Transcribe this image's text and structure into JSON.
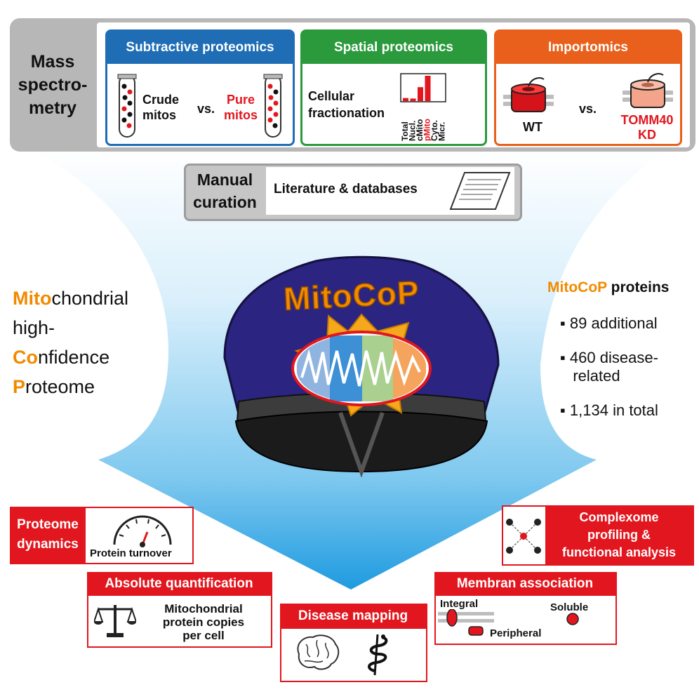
{
  "mass_spec": {
    "label_lines": [
      "Mass",
      "spectro-",
      "metry"
    ],
    "panels": [
      {
        "title": "Subtractive proteomics",
        "color": "#1f6db5",
        "left_lines": [
          "Crude",
          "mitos"
        ],
        "vs": "vs.",
        "right_lines": [
          "Pure",
          "mitos"
        ]
      },
      {
        "title": "Spatial proteomics",
        "color": "#2a9a3c",
        "text_lines": [
          "Cellular",
          "fractionation"
        ],
        "fractions": [
          "Total",
          "Nucl.",
          "cMito",
          "pMito",
          "Cyto.",
          "Micr."
        ],
        "fraction_levels": [
          0.12,
          0.1,
          0.55,
          1.0,
          0,
          0
        ]
      },
      {
        "title": "Importomics",
        "color": "#e8601c",
        "left_label": "WT",
        "vs": "vs.",
        "right_lines": [
          "TOMM40",
          "KD"
        ]
      }
    ]
  },
  "manual": {
    "label_lines": [
      "Manual",
      "curation"
    ],
    "text": "Literature & databases"
  },
  "left_side": {
    "lines": [
      {
        "hl": "Mito",
        "rest": "chondrial"
      },
      {
        "hl": "",
        "rest": "high-"
      },
      {
        "hl": "Co",
        "rest": "nfidence"
      },
      {
        "hl": "P",
        "rest": "roteome"
      }
    ]
  },
  "right_side": {
    "title_hl": "MitoCoP",
    "title_rest": " proteins",
    "bullets": [
      [
        "89 additional"
      ],
      [
        "460 disease-",
        "related"
      ],
      [
        "1,134 in total"
      ]
    ]
  },
  "hat": {
    "badge_text": "MitoCoP"
  },
  "outputs": {
    "proteome_dynamics": {
      "head_lines": [
        "Proteome",
        "dynamics"
      ],
      "body": "Protein turnover"
    },
    "absolute_quant": {
      "head": "Absolute quantification",
      "body_lines": [
        "Mitochondrial",
        "protein copies",
        "per cell"
      ]
    },
    "disease_mapping": {
      "head": "Disease mapping"
    },
    "membrane": {
      "head": "Membran association",
      "integral": "Integral",
      "soluble": "Soluble",
      "peripheral": "Peripheral"
    },
    "complexome": {
      "head_lines": [
        "Complexome",
        "profiling &",
        "functional analysis"
      ]
    }
  },
  "colors": {
    "red": "#e2161e",
    "orange": "#f28a00",
    "navy": "#2b2480",
    "gold": "#f5a81c",
    "sky": "#3aa6e8"
  }
}
